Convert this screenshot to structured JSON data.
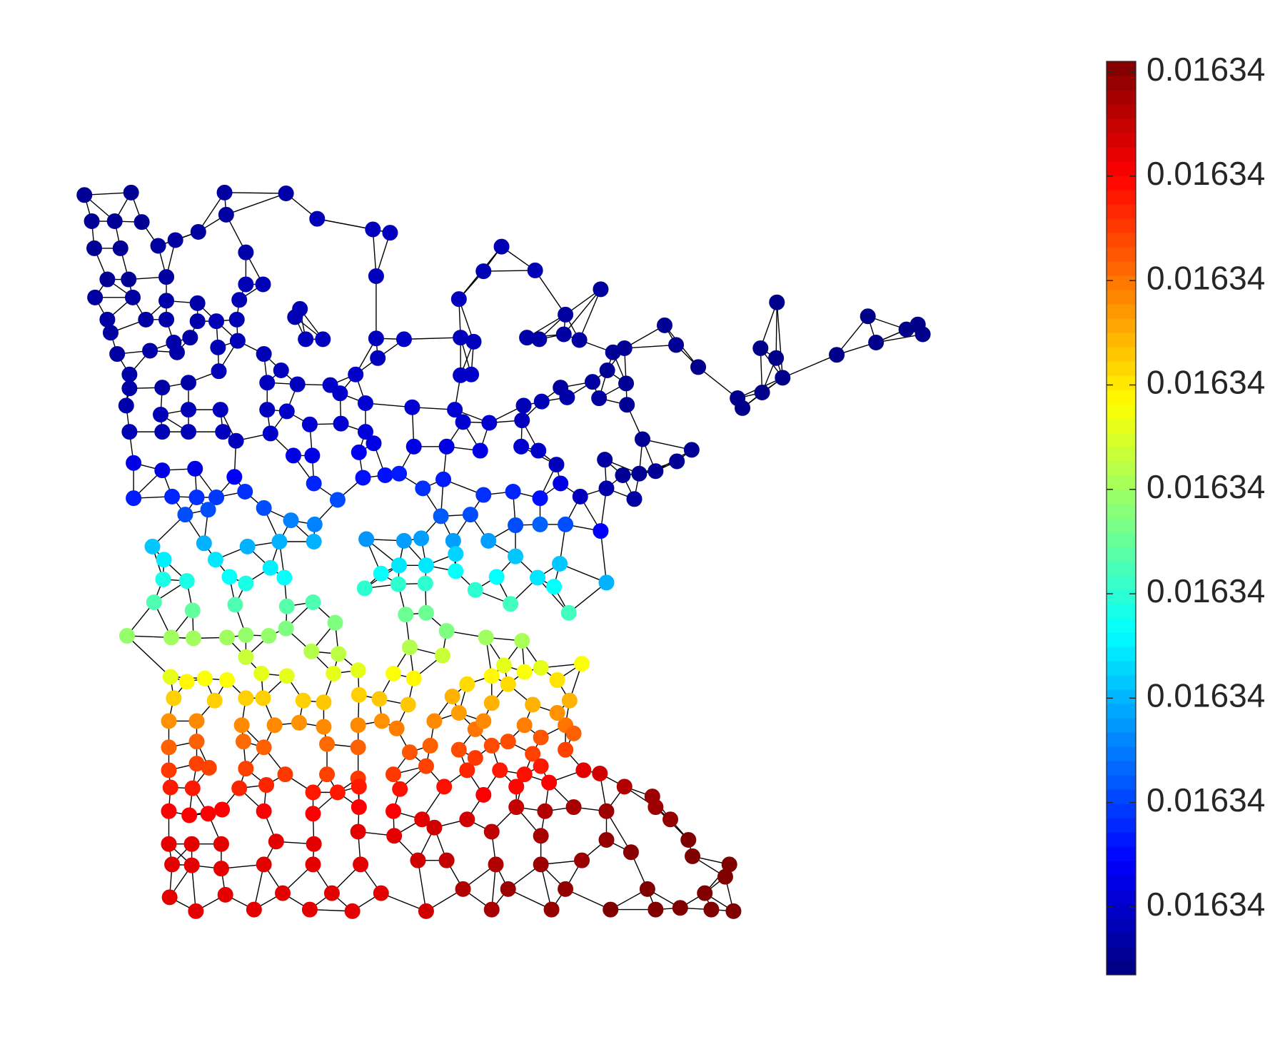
{
  "chart_data": {
    "type": "graph",
    "colormap": "jet",
    "xlim": [
      0,
      156.8
    ],
    "ylim": [
      3.2,
      130
    ],
    "clim": [
      0.01633994,
      0.01634344
    ],
    "cticks": [
      {
        "value": 0.0163402,
        "label": "0.01634"
      },
      {
        "value": 0.0163406,
        "label": "0.01634"
      },
      {
        "value": 0.016341,
        "label": "0.01634"
      },
      {
        "value": 0.0163414,
        "label": "0.01634"
      },
      {
        "value": 0.0163418,
        "label": "0.01634"
      },
      {
        "value": 0.0163422,
        "label": "0.01634"
      },
      {
        "value": 0.0163426,
        "label": "0.01634"
      },
      {
        "value": 0.016343,
        "label": "0.01634"
      },
      {
        "value": 0.0163434,
        "label": "0.01634"
      }
    ],
    "x": [
      10.3,
      16.0,
      27.4,
      34.9,
      11.2,
      14.0,
      17.3,
      27.6,
      38.7,
      45.5,
      47.6,
      11.5,
      14.7,
      19.3,
      21.4,
      24.2,
      30.0,
      61.2,
      59.0,
      65.3,
      45.9,
      13.1,
      15.7,
      20.3,
      30.0,
      32.1,
      11.6,
      16.2,
      20.3,
      24.1,
      29.2,
      36.6,
      56.0,
      73.3,
      69.0,
      94.8,
      13.1,
      17.8,
      20.3,
      24.1,
      26.4,
      28.9,
      36.0,
      81.1,
      105.9,
      112.0,
      110.6,
      112.6,
      13.5,
      21.2,
      23.2,
      26.6,
      29.0,
      37.3,
      39.4,
      45.9,
      49.3,
      56.2,
      57.8,
      64.3,
      65.8,
      68.8,
      70.7,
      82.5,
      106.9,
      14.3,
      18.3,
      21.6,
      32.2,
      46.1,
      76.2,
      74.8,
      92.8,
      94.7,
      102.1,
      15.8,
      26.7,
      34.3,
      43.4,
      56.2,
      57.5,
      74.1,
      85.2,
      15.8,
      19.8,
      23.0,
      32.6,
      36.3,
      40.3,
      68.4,
      72.3,
      76.4,
      95.5,
      41.5,
      15.4,
      19.6,
      23.0,
      26.9,
      32.6,
      35.0,
      44.6,
      50.3,
      55.5,
      63.9,
      66.1,
      69.2,
      73.1,
      76.5,
      90.0,
      93.0,
      90.6,
      15.8,
      19.8,
      23.0,
      27.2,
      28.8,
      33.0,
      37.8,
      41.6,
      44.6,
      56.5,
      59.7,
      63.7,
      78.4,
      84.4,
      82.6,
      16.3,
      19.8,
      23.8,
      28.6,
      35.8,
      38.1,
      43.8,
      45.6,
      50.5,
      54.5,
      58.6,
      63.6,
      65.7,
      67.9,
      73.8,
      76.0,
      78.0,
      80.0,
      16.3,
      21.0,
      24.0,
      26.4,
      29.9,
      32.2,
      38.3,
      41.2,
      44.3,
      47.0,
      48.7,
      51.6,
      54.1,
      59.0,
      62.6,
      65.9,
      68.4,
      70.8,
      74.0,
      77.4,
      22.6,
      25.4,
      38.4,
      35.5,
      53.8,
      57.4,
      62.9,
      73.3,
      18.6,
      24.9,
      30.2,
      34.1,
      38.3,
      44.7,
      49.3,
      51.4,
      55.3,
      59.6,
      65.9,
      69.0,
      20.0,
      26.3,
      33.0,
      48.7,
      52.0,
      55.6,
      62.9,
      68.3,
      19.9,
      22.8,
      28.0,
      30.0,
      34.7,
      46.5,
      55.6,
      60.6,
      65.6,
      74.0,
      18.8,
      23.5,
      28.7,
      35.0,
      38.2,
      44.5,
      48.6,
      51.9,
      58.0,
      62.3,
      67.6,
      69.4,
      15.5,
      20.9,
      23.6,
      27.7,
      30.0,
      32.8,
      34.9,
      40.9,
      49.5,
      52.0,
      54.5,
      59.3,
      63.7,
      30.0,
      38.0,
      41.3,
      50.0,
      54.0,
      61.5,
      66.0,
      71.0,
      20.8,
      22.8,
      25.0,
      27.7,
      31.9,
      35.0,
      40.7,
      43.7,
      48.0,
      50.5,
      57.0,
      62.0,
      68.0,
      21.2,
      26.2,
      30.0,
      32.1,
      37.0,
      39.5,
      43.8,
      46.3,
      49.8,
      55.2,
      60.0,
      65.0,
      69.5,
      20.6,
      24.0,
      29.5,
      33.5,
      36.5,
      39.5,
      43.7,
      46.6,
      48.4,
      53.0,
      58.0,
      64.0,
      69.0,
      20.6,
      24.0,
      29.7,
      32.2,
      39.9,
      43.7,
      50.0,
      52.5,
      56.0,
      60.0,
      65.0,
      69.0,
      20.6,
      24.0,
      25.5,
      30.0,
      34.8,
      39.9,
      43.7,
      48.0,
      52.0,
      57.0,
      61.0,
      66.0,
      71.2,
      73.2,
      20.8,
      23.5,
      29.2,
      32.5,
      38.2,
      41.2,
      43.8,
      48.8,
      54.2,
      59.0,
      63.0,
      67.0,
      76.2,
      20.6,
      23.1,
      25.4,
      27.1,
      32.2,
      38.2,
      43.8,
      48.0,
      51.5,
      57.0,
      63.0,
      66.5,
      70.0,
      74.0,
      79.6,
      80.0,
      20.6,
      23.4,
      27.0,
      33.7,
      38.3,
      43.7,
      48.1,
      53.0,
      60.0,
      66.0,
      74.0,
      81.8,
      84.0,
      21.0,
      23.4,
      27.0,
      32.2,
      38.2,
      44.0,
      51.0,
      54.5,
      60.5,
      66.0,
      71.0,
      77.0,
      84.5,
      89.0,
      88.5,
      20.7,
      23.9,
      27.5,
      31.0,
      34.5,
      37.8,
      40.5,
      43.0,
      46.5,
      52.0,
      56.5,
      60.0,
      62.0,
      67.3,
      69.0,
      74.5,
      79.0,
      80.0,
      83.0,
      86.8,
      89.5,
      86.0,
      56.0,
      59.0,
      62.0,
      66.0,
      60.0,
      64.0,
      68.0,
      70.0,
      64.0,
      58.0
    ],
    "y": [
      106.2,
      106.5,
      106.5,
      106.4,
      103.0,
      103.0,
      102.9,
      103.8,
      103.3,
      102.0,
      101.6,
      99.7,
      99.7,
      100.0,
      100.7,
      101.7,
      99.2,
      99.9,
      96.9,
      97.0,
      96.3,
      95.9,
      95.9,
      96.2,
      95.3,
      95.3,
      93.7,
      93.7,
      93.3,
      93.0,
      93.4,
      92.3,
      93.5,
      94.7,
      91.6,
      93.1,
      91.0,
      91.0,
      91.0,
      90.8,
      90.8,
      91.0,
      91.3,
      90.3,
      91.4,
      90.4,
      89.8,
      89.2,
      89.4,
      88.2,
      88.8,
      87.6,
      88.4,
      88.6,
      88.6,
      88.7,
      88.6,
      88.8,
      88.3,
      88.8,
      88.6,
      89.2,
      88.5,
      87.9,
      88.2,
      86.8,
      87.2,
      87.0,
      86.8,
      86.3,
      87.5,
      87.0,
      87.5,
      86.3,
      86.7,
      84.3,
      84.7,
      84.8,
      84.3,
      84.2,
      84.3,
      84.8,
      85.2,
      82.6,
      82.7,
      83.3,
      83.3,
      83.1,
      83.0,
      82.7,
      83.4,
      83.2,
      83.9,
      82.0,
      80.5,
      79.4,
      80.0,
      80.0,
      80.0,
      79.8,
      80.8,
      80.3,
      80.0,
      80.5,
      81.0,
      81.5,
      81.4,
      80.6,
      81.4,
      82.1,
      80.2,
      77.3,
      77.3,
      77.3,
      77.3,
      76.2,
      77.1,
      78.2,
      78.3,
      77.3,
      78.5,
      78.4,
      78.7,
      76.4,
      75.1,
      73.7,
      73.5,
      72.6,
      72.8,
      71.8,
      74.4,
      74.4,
      74.8,
      75.9,
      75.5,
      75.5,
      75.0,
      75.5,
      75.0,
      73.3,
      73.9,
      72.0,
      72.2,
      72.5,
      69.2,
      69.4,
      69.3,
      69.3,
      70.0,
      68.0,
      71.0,
      69.0,
      71.7,
      72.0,
      72.2,
      70.4,
      71.5,
      69.6,
      70.0,
      69.2,
      71.0,
      69.4,
      70.4,
      69.1,
      67.2,
      67.8,
      66.0,
      66.5,
      67.0,
      67.2,
      65.9,
      65.2,
      63.3,
      63.7,
      63.3,
      63.9,
      63.9,
      64.2,
      64.0,
      64.3,
      64.0,
      64.0,
      66.0,
      66.0,
      61.7,
      61.7,
      60.7,
      61.0,
      61.0,
      62.4,
      62.1,
      61.2,
      59.3,
      59.1,
      59.6,
      58.8,
      59.5,
      60.0,
      60.3,
      59.6,
      59.5,
      58.9,
      56.5,
      55.5,
      56.2,
      56.0,
      56.5,
      58.2,
      58.7,
      58.8,
      58.0,
      56.3,
      58.4,
      55.2,
      52.4,
      52.2,
      52.1,
      52.2,
      52.5,
      52.4,
      53.3,
      54.0,
      55.0,
      55.2,
      53.0,
      52.2,
      51.8,
      49.8,
      50.5,
      50.2,
      51.0,
      50.0,
      48.8,
      48.5,
      49.0,
      47.4,
      46.8,
      47.2,
      47.0,
      47.8,
      47.5,
      47.8,
      48.2,
      47.8,
      47.2,
      46.5,
      46.5,
      47.0,
      44.8,
      44.5,
      44.8,
      44.8,
      44.5,
      44.3,
      45.2,
      44.7,
      44.0,
      45.0,
      44.2,
      44.0,
      44.5,
      42.0,
      42.0,
      41.5,
      41.5,
      41.8,
      41.3,
      41.5,
      42.0,
      41.1,
      42.0,
      41.0,
      41.5,
      41.5,
      38.8,
      39.5,
      39.5,
      38.8,
      39.2,
      38.8,
      38.2,
      39.0,
      38.5,
      39.0,
      38.0,
      38.5,
      36.0,
      36.8,
      36.3,
      36.2,
      35.5,
      35.5,
      35.0,
      35.5,
      36.5,
      36.0,
      36.0,
      36.5,
      36.0,
      35.6,
      33.9,
      33.8,
      33.8,
      34.2,
      33.3,
      33.3,
      34.0,
      33.7,
      34.0,
      33.0,
      34.0,
      34.5,
      34.0,
      31.0,
      30.5,
      30.7,
      31.2,
      31.0,
      30.7,
      31.5,
      31.0,
      30.0,
      30.0,
      31.5,
      31.0,
      31.5,
      31.0,
      32.8,
      31.5,
      27.0,
      27.0,
      27.0,
      27.3,
      27.0,
      28.5,
      28.0,
      29.0,
      28.5,
      28.0,
      27.5,
      30.0,
      27.5,
      24.5,
      24.4,
      24.0,
      24.5,
      24.5,
      24.5,
      25.0,
      25.0,
      24.5,
      24.5,
      25.0,
      26.0,
      25.5,
      24.5,
      23.0,
      20.5,
      18.8,
      20.8,
      19.0,
      21.0,
      19.0,
      21.0,
      18.8,
      21.0,
      18.8,
      21.5,
      19.0,
      21.5,
      19.0,
      21.5,
      19.0,
      21.5,
      19.0,
      19.2,
      19.0,
      18.8,
      21.0,
      43.0,
      42.0,
      39.5,
      40.0,
      47.5,
      48.0,
      43.0,
      40.5,
      35.5,
      37.5
    ],
    "values": [
      0.01634001,
      0.01634001,
      0.01634005,
      0.01634008,
      0.01634001,
      0.01634001,
      0.01634001,
      0.01634005,
      0.01634012,
      0.01634015,
      0.01634015,
      0.01634001,
      0.01634001,
      0.01634005,
      0.01634005,
      0.01634005,
      0.01634008,
      0.01634012,
      0.01634012,
      0.01634012,
      0.01634015,
      0.01634001,
      0.01634001,
      0.01634005,
      0.01634012,
      0.01634012,
      0.01634005,
      0.01634005,
      0.01634008,
      0.01634008,
      0.01634012,
      0.01634012,
      0.01634015,
      0.01634005,
      0.01634005,
      0.01633998,
      0.01634005,
      0.01634005,
      0.01634008,
      0.01634008,
      0.01634012,
      0.01634012,
      0.01634012,
      0.01634001,
      0.01633998,
      0.01633998,
      0.01633998,
      0.01633998,
      0.01634005,
      0.01634008,
      0.01634008,
      0.01634012,
      0.01634012,
      0.01634015,
      0.01634015,
      0.01634015,
      0.01634019,
      0.01634015,
      0.01634015,
      0.01634008,
      0.01634008,
      0.01634005,
      0.01634005,
      0.01634001,
      0.01633998,
      0.01634005,
      0.01634008,
      0.01634008,
      0.01634012,
      0.01634015,
      0.01634001,
      0.01634001,
      0.01633998,
      0.01633998,
      0.01633998,
      0.01634008,
      0.01634012,
      0.01634015,
      0.01634019,
      0.01634019,
      0.01634019,
      0.01634001,
      0.01633998,
      0.01634008,
      0.01634008,
      0.01634008,
      0.01634015,
      0.01634015,
      0.01634019,
      0.01634005,
      0.01634005,
      0.01634001,
      0.01633998,
      0.01634019,
      0.01634008,
      0.01634012,
      0.01634012,
      0.01634015,
      0.01634015,
      0.01634019,
      0.01634022,
      0.01634022,
      0.01634022,
      0.01634012,
      0.01634012,
      0.01634008,
      0.01634005,
      0.01634001,
      0.01633998,
      0.01633998,
      0.01633998,
      0.01634012,
      0.01634012,
      0.01634012,
      0.01634015,
      0.01634015,
      0.01634019,
      0.01634022,
      0.01634022,
      0.01634026,
      0.01634022,
      0.01634022,
      0.01634015,
      0.01634001,
      0.01634001,
      0.01634001,
      0.01634029,
      0.01634029,
      0.01634029,
      0.01634036,
      0.01634029,
      0.01634029,
      0.01634033,
      0.01634029,
      0.01634029,
      0.01634029,
      0.01634029,
      0.01634022,
      0.01634019,
      0.01634015,
      0.01634005,
      0.01634001,
      0.01634001,
      0.01634001,
      0.01634047,
      0.0163405,
      0.01634054,
      0.01634057,
      0.01634054,
      0.01634064,
      0.0163405,
      0.01634064,
      0.01634043,
      0.01634043,
      0.01634047,
      0.01634054,
      0.01634047,
      0.01634054,
      0.0163405,
      0.01634043,
      0.01634029,
      0.01634015,
      0.01634008,
      0.01634005,
      0.01634064,
      0.01634064,
      0.01634082,
      0.01634082,
      0.01634068,
      0.01634064,
      0.01634064,
      0.01634036,
      0.01634106,
      0.01634099,
      0.01634099,
      0.01634099,
      0.01634099,
      0.01634089,
      0.01634092,
      0.01634092,
      0.01634092,
      0.01634092,
      0.01634071,
      0.01634064,
      0.0163412,
      0.01634117,
      0.0163412,
      0.01634117,
      0.01634117,
      0.0163411,
      0.01634106,
      0.01634106,
      0.01634134,
      0.01634134,
      0.01634127,
      0.01634134,
      0.01634127,
      0.01634127,
      0.01634127,
      0.01634127,
      0.01634117,
      0.01634099,
      0.01634152,
      0.01634159,
      0.01634152,
      0.01634155,
      0.01634152,
      0.01634141,
      0.01634141,
      0.01634141,
      0.01634141,
      0.01634148,
      0.01634127,
      0.01634148,
      0.01634176,
      0.0163418,
      0.0163418,
      0.0163418,
      0.01634176,
      0.01634176,
      0.01634169,
      0.01634169,
      0.01634162,
      0.01634162,
      0.01634169,
      0.0163418,
      0.01634183,
      0.01634194,
      0.01634187,
      0.0163419,
      0.01634187,
      0.01634194,
      0.01634204,
      0.01634204,
      0.01634211,
      0.01634204,
      0.01634215,
      0.01634211,
      0.01634211,
      0.01634204,
      0.01634204,
      0.01634204,
      0.01634204,
      0.01634211,
      0.01634215,
      0.01634225,
      0.01634225,
      0.01634222,
      0.01634229,
      0.01634229,
      0.01634229,
      0.01634229,
      0.01634229,
      0.01634232,
      0.01634229,
      0.01634232,
      0.01634232,
      0.01634239,
      0.01634239,
      0.01634239,
      0.01634239,
      0.0163425,
      0.01634253,
      0.01634253,
      0.01634253,
      0.0163425,
      0.01634253,
      0.01634253,
      0.0163425,
      0.01634257,
      0.01634253,
      0.0163426,
      0.01634257,
      0.0163426,
      0.01634267,
      0.01634267,
      0.01634264,
      0.01634267,
      0.01634264,
      0.01634267,
      0.01634271,
      0.01634267,
      0.01634274,
      0.01634274,
      0.01634278,
      0.01634278,
      0.01634281,
      0.01634278,
      0.01634278,
      0.01634278,
      0.01634281,
      0.01634278,
      0.01634281,
      0.01634281,
      0.01634278,
      0.01634288,
      0.01634292,
      0.01634292,
      0.01634309,
      0.01634316,
      0.01634292,
      0.01634292,
      0.01634288,
      0.01634288,
      0.01634292,
      0.01634292,
      0.01634292,
      0.01634295,
      0.01634295,
      0.01634302,
      0.01634299,
      0.01634302,
      0.01634327,
      0.01634302,
      0.01634302,
      0.01634302,
      0.01634302,
      0.01634302,
      0.01634302,
      0.01634302,
      0.01634302,
      0.01634309,
      0.01634316,
      0.0163432,
      0.01634327,
      0.0163433,
      0.01634334,
      0.01634334,
      0.01634334,
      0.01634309,
      0.01634309,
      0.01634309,
      0.01634309,
      0.01634309,
      0.01634309,
      0.01634309,
      0.01634316,
      0.01634323,
      0.0163433,
      0.01634337,
      0.01634337,
      0.01634344,
      0.01634309,
      0.01634309,
      0.01634309,
      0.01634309,
      0.01634309,
      0.01634309,
      0.01634316,
      0.0163432,
      0.01634327,
      0.01634334,
      0.01634334,
      0.01634341,
      0.01634344,
      0.01634344,
      0.01634344,
      0.01634309,
      0.01634309,
      0.01634309,
      0.01634309,
      0.01634309,
      0.01634309,
      0.01634309,
      0.01634309,
      0.01634309,
      0.01634316,
      0.01634327,
      0.0163433,
      0.01634334,
      0.01634337,
      0.01634337,
      0.01634344,
      0.01634344,
      0.01634344,
      0.01634344,
      0.01634344,
      0.01634344,
      0.01634344,
      0.01634246,
      0.01634253,
      0.01634274,
      0.01634271,
      0.01634215,
      0.01634211,
      0.0163425,
      0.01634267,
      0.01634295,
      0.01634281
    ]
  }
}
